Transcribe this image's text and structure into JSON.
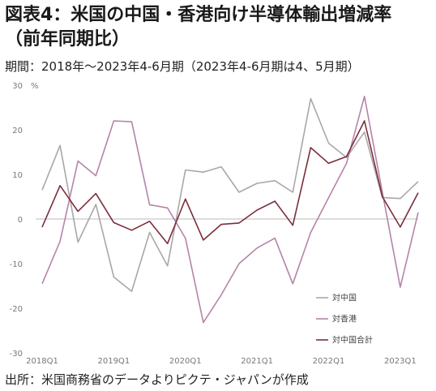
{
  "header": {
    "title_line1": "図表4：米国の中国・香港向け半導体輸出増減率",
    "title_line2": "（前年同期比）",
    "period": "期間：2018年～2023年4-6月期（2023年4-6月期は4、5月期）"
  },
  "footer": {
    "source": "出所：米国商務省のデータよりピクテ・ジャパンが作成"
  },
  "chart_data": {
    "type": "line",
    "ylabel_unit": "%",
    "ylim": [
      -30,
      30
    ],
    "yticks": [
      30,
      20,
      10,
      0,
      -10,
      -20,
      -30
    ],
    "categories": [
      "2018Q1",
      "2018Q2",
      "2018Q3",
      "2018Q4",
      "2019Q1",
      "2019Q2",
      "2019Q3",
      "2019Q4",
      "2020Q1",
      "2020Q2",
      "2020Q3",
      "2020Q4",
      "2021Q1",
      "2021Q2",
      "2021Q3",
      "2021Q4",
      "2022Q1",
      "2022Q2",
      "2022Q3",
      "2022Q4",
      "2023Q1",
      "2023Q2"
    ],
    "x_tick_labels": [
      "2018Q1",
      "",
      "",
      "",
      "2019Q1",
      "",
      "",
      "",
      "2020Q1",
      "",
      "",
      "",
      "2021Q1",
      "",
      "",
      "",
      "2022Q1",
      "",
      "",
      "",
      "2023Q1",
      ""
    ],
    "grid": false,
    "legend_position": "right",
    "series": [
      {
        "name": "対中国",
        "color": "#a8a8a8",
        "values": [
          6.5,
          16.5,
          -5.2,
          3.3,
          -13,
          -16.2,
          -3,
          -10.5,
          11,
          10.5,
          11.7,
          6,
          8,
          8.6,
          6,
          27,
          17,
          13.8,
          19.5,
          4.8,
          4.6,
          8.4
        ]
      },
      {
        "name": "対香港",
        "color": "#b484a8",
        "values": [
          -14.5,
          -5,
          13,
          9.7,
          22,
          21.8,
          3.2,
          2.5,
          -4.3,
          -23.2,
          -17,
          -10,
          -6.5,
          -4.3,
          -14.5,
          -3,
          4.8,
          12.5,
          27.5,
          6,
          -15.3,
          1.5
        ]
      },
      {
        "name": "対中国合計",
        "color": "#7b2e3a",
        "values": [
          -1.8,
          7.5,
          1.7,
          5.7,
          -0.8,
          -2.5,
          -0.5,
          -5.5,
          4.5,
          -4.7,
          -1.2,
          -0.9,
          2,
          4,
          -1.4,
          16,
          12.5,
          14,
          22,
          5,
          -1.8,
          5.9
        ]
      }
    ]
  }
}
